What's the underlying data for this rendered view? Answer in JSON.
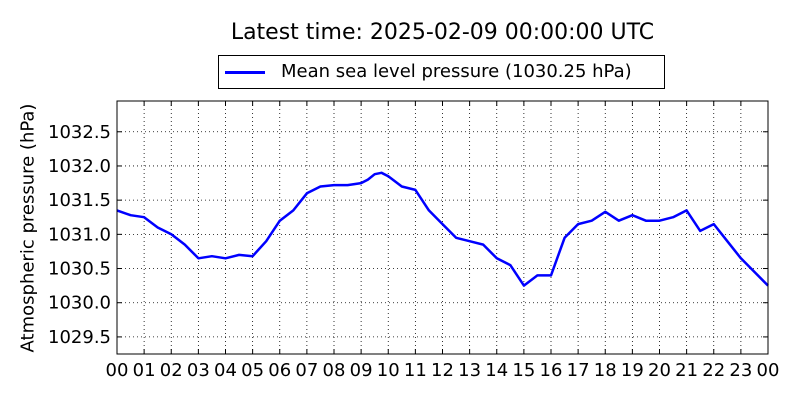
{
  "chart_data": {
    "type": "line",
    "title": "Latest time: 2025-02-09 00:00:00 UTC",
    "ylabel": "Atmospheric pressure (hPa)",
    "xlabel": "",
    "xlim": [
      0,
      24
    ],
    "ylim": [
      1029.25,
      1032.95
    ],
    "x_ticks": [
      "00",
      "01",
      "02",
      "03",
      "04",
      "05",
      "06",
      "07",
      "08",
      "09",
      "10",
      "11",
      "12",
      "13",
      "14",
      "15",
      "16",
      "17",
      "18",
      "19",
      "20",
      "21",
      "22",
      "23",
      "00"
    ],
    "y_ticks": [
      1029.5,
      1030.0,
      1030.5,
      1031.0,
      1031.5,
      1032.0,
      1032.5
    ],
    "grid": true,
    "legend_position": "top-center",
    "legend": [
      "Mean sea level pressure (1030.25 hPa)"
    ],
    "color": "#0000ff",
    "series": [
      {
        "name": "Mean sea level pressure (1030.25 hPa)",
        "x": [
          0,
          0.5,
          1,
          1.5,
          2,
          2.5,
          3,
          3.5,
          4,
          4.5,
          5,
          5.5,
          6,
          6.5,
          7,
          7.5,
          8,
          8.5,
          9,
          9.25,
          9.5,
          9.75,
          10,
          10.5,
          11,
          11.5,
          12,
          12.5,
          13,
          13.5,
          14,
          14.5,
          15,
          15.5,
          16,
          16.5,
          17,
          17.5,
          18,
          18.5,
          19,
          19.5,
          20,
          20.5,
          21,
          21.5,
          22,
          22.5,
          23,
          23.5,
          24
        ],
        "y": [
          1031.35,
          1031.28,
          1031.25,
          1031.1,
          1031.0,
          1030.85,
          1030.65,
          1030.68,
          1030.65,
          1030.7,
          1030.68,
          1030.9,
          1031.2,
          1031.35,
          1031.6,
          1031.7,
          1031.72,
          1031.72,
          1031.75,
          1031.8,
          1031.88,
          1031.9,
          1031.85,
          1031.7,
          1031.65,
          1031.35,
          1031.15,
          1030.95,
          1030.9,
          1030.85,
          1030.65,
          1030.55,
          1030.25,
          1030.4,
          1030.4,
          1030.95,
          1031.15,
          1031.2,
          1031.33,
          1031.2,
          1031.28,
          1031.2,
          1031.2,
          1031.25,
          1031.35,
          1031.05,
          1031.15,
          1030.9,
          1030.65,
          1030.45,
          1030.25
        ]
      }
    ]
  }
}
